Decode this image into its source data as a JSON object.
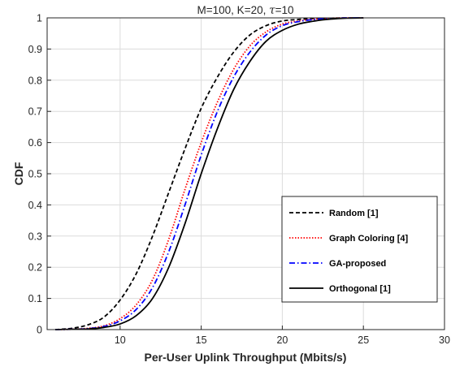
{
  "chart_data": {
    "type": "line",
    "title_prefix": "M=100, K=20, ",
    "title_symbol": "τ",
    "title_suffix": "=10",
    "xlabel": "Per-User Uplink Throughput (Mbits/s)",
    "ylabel": "CDF",
    "xlim": [
      5.5,
      30
    ],
    "ylim": [
      0,
      1
    ],
    "xticks": [
      10,
      15,
      20,
      25,
      30
    ],
    "xtick_labels": [
      "10",
      "15",
      "20",
      "25",
      "30"
    ],
    "yticks": [
      0,
      0.1,
      0.2,
      0.3,
      0.4,
      0.5,
      0.6,
      0.7,
      0.8,
      0.9,
      1
    ],
    "ytick_labels": [
      "0",
      "0.1",
      "0.2",
      "0.3",
      "0.4",
      "0.5",
      "0.6",
      "0.7",
      "0.8",
      "0.9",
      "1"
    ],
    "grid": true,
    "legend_position": "bottom-right",
    "series": [
      {
        "name": "Random [1]",
        "color": "#000000",
        "dash": "dashed",
        "x": [
          6,
          7,
          8,
          9,
          10,
          11,
          12,
          13,
          14,
          15,
          16,
          17,
          18,
          19,
          20,
          21,
          22,
          23,
          24,
          25
        ],
        "y": [
          0.0,
          0.004,
          0.015,
          0.04,
          0.095,
          0.18,
          0.3,
          0.44,
          0.58,
          0.71,
          0.81,
          0.89,
          0.945,
          0.975,
          0.99,
          0.995,
          0.998,
          0.999,
          1.0,
          1.0
        ]
      },
      {
        "name": "Graph Coloring [4]",
        "color": "#ff0000",
        "dash": "dotted",
        "x": [
          6,
          7,
          8,
          9,
          10,
          11,
          12,
          13,
          14,
          15,
          16,
          17,
          18,
          19,
          20,
          21,
          22,
          23,
          24,
          25
        ],
        "y": [
          0.0,
          0.001,
          0.004,
          0.012,
          0.035,
          0.08,
          0.16,
          0.29,
          0.45,
          0.6,
          0.73,
          0.835,
          0.91,
          0.955,
          0.98,
          0.99,
          0.996,
          0.999,
          1.0,
          1.0
        ]
      },
      {
        "name": "GA-proposed",
        "color": "#0000ff",
        "dash": "dashdot",
        "x": [
          6,
          7,
          8,
          9,
          10,
          11,
          12,
          13,
          14,
          15,
          16,
          17,
          18,
          19,
          20,
          21,
          22,
          23,
          24,
          25
        ],
        "y": [
          0.0,
          0.001,
          0.003,
          0.01,
          0.028,
          0.065,
          0.135,
          0.25,
          0.4,
          0.56,
          0.7,
          0.81,
          0.89,
          0.945,
          0.975,
          0.988,
          0.995,
          0.998,
          1.0,
          1.0
        ]
      },
      {
        "name": "Orthogonal [1]",
        "color": "#000000",
        "dash": "solid",
        "x": [
          6,
          7,
          8,
          9,
          10,
          11,
          12,
          13,
          14,
          15,
          16,
          17,
          18,
          19,
          20,
          21,
          22,
          23,
          24,
          25
        ],
        "y": [
          0.0,
          0.001,
          0.002,
          0.007,
          0.018,
          0.045,
          0.1,
          0.2,
          0.34,
          0.5,
          0.645,
          0.77,
          0.86,
          0.925,
          0.96,
          0.98,
          0.99,
          0.996,
          0.999,
          1.0
        ]
      }
    ]
  }
}
